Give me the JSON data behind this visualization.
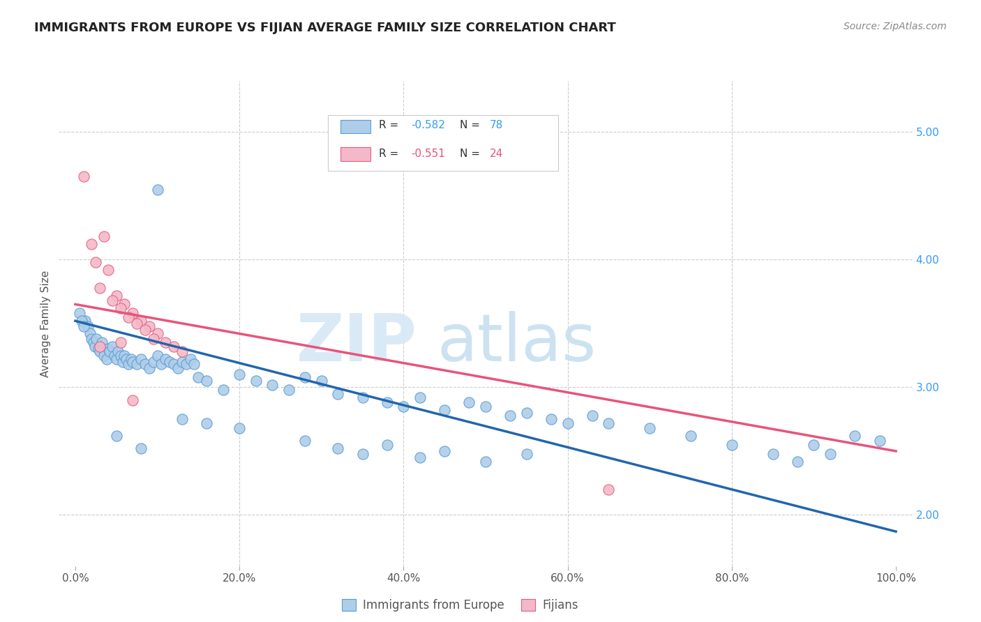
{
  "title": "IMMIGRANTS FROM EUROPE VS FIJIAN AVERAGE FAMILY SIZE CORRELATION CHART",
  "source": "Source: ZipAtlas.com",
  "ylabel": "Average Family Size",
  "right_yticks": [
    2.0,
    3.0,
    4.0,
    5.0
  ],
  "watermark_zip": "ZIP",
  "watermark_atlas": "atlas",
  "blue_color": "#aecde8",
  "blue_edge_color": "#5b9bd5",
  "pink_color": "#f4b8c8",
  "pink_edge_color": "#e06080",
  "blue_line_color": "#2166ac",
  "pink_line_color": "#e8547a",
  "blue_scatter": [
    [
      1.2,
      3.52
    ],
    [
      1.5,
      3.48
    ],
    [
      1.8,
      3.42
    ],
    [
      2.0,
      3.38
    ],
    [
      2.2,
      3.35
    ],
    [
      2.4,
      3.32
    ],
    [
      2.6,
      3.38
    ],
    [
      2.8,
      3.3
    ],
    [
      3.0,
      3.28
    ],
    [
      3.2,
      3.35
    ],
    [
      3.5,
      3.25
    ],
    [
      3.8,
      3.22
    ],
    [
      4.0,
      3.3
    ],
    [
      4.2,
      3.28
    ],
    [
      4.5,
      3.32
    ],
    [
      4.8,
      3.25
    ],
    [
      5.0,
      3.22
    ],
    [
      5.2,
      3.28
    ],
    [
      5.5,
      3.25
    ],
    [
      5.8,
      3.2
    ],
    [
      6.0,
      3.25
    ],
    [
      6.2,
      3.22
    ],
    [
      6.5,
      3.18
    ],
    [
      6.8,
      3.22
    ],
    [
      7.0,
      3.2
    ],
    [
      7.5,
      3.18
    ],
    [
      8.0,
      3.22
    ],
    [
      8.5,
      3.18
    ],
    [
      9.0,
      3.15
    ],
    [
      9.5,
      3.2
    ],
    [
      10.0,
      3.25
    ],
    [
      10.5,
      3.18
    ],
    [
      11.0,
      3.22
    ],
    [
      11.5,
      3.2
    ],
    [
      12.0,
      3.18
    ],
    [
      12.5,
      3.15
    ],
    [
      13.0,
      3.2
    ],
    [
      13.5,
      3.18
    ],
    [
      14.0,
      3.22
    ],
    [
      14.5,
      3.18
    ],
    [
      0.5,
      3.58
    ],
    [
      0.8,
      3.52
    ],
    [
      1.0,
      3.48
    ],
    [
      15.0,
      3.08
    ],
    [
      16.0,
      3.05
    ],
    [
      18.0,
      2.98
    ],
    [
      20.0,
      3.1
    ],
    [
      22.0,
      3.05
    ],
    [
      24.0,
      3.02
    ],
    [
      26.0,
      2.98
    ],
    [
      28.0,
      3.08
    ],
    [
      30.0,
      3.05
    ],
    [
      32.0,
      2.95
    ],
    [
      35.0,
      2.92
    ],
    [
      38.0,
      2.88
    ],
    [
      40.0,
      2.85
    ],
    [
      42.0,
      2.92
    ],
    [
      45.0,
      2.82
    ],
    [
      48.0,
      2.88
    ],
    [
      50.0,
      2.85
    ],
    [
      53.0,
      2.78
    ],
    [
      55.0,
      2.8
    ],
    [
      58.0,
      2.75
    ],
    [
      60.0,
      2.72
    ],
    [
      63.0,
      2.78
    ],
    [
      65.0,
      2.72
    ],
    [
      28.0,
      2.58
    ],
    [
      32.0,
      2.52
    ],
    [
      35.0,
      2.48
    ],
    [
      38.0,
      2.55
    ],
    [
      42.0,
      2.45
    ],
    [
      45.0,
      2.5
    ],
    [
      50.0,
      2.42
    ],
    [
      55.0,
      2.48
    ],
    [
      70.0,
      2.68
    ],
    [
      75.0,
      2.62
    ],
    [
      80.0,
      2.55
    ],
    [
      85.0,
      2.48
    ],
    [
      88.0,
      2.42
    ],
    [
      90.0,
      2.55
    ],
    [
      92.0,
      2.48
    ],
    [
      95.0,
      2.62
    ],
    [
      98.0,
      2.58
    ],
    [
      13.0,
      2.75
    ],
    [
      16.0,
      2.72
    ],
    [
      20.0,
      2.68
    ],
    [
      10.0,
      4.55
    ],
    [
      5.0,
      2.62
    ],
    [
      8.0,
      2.52
    ]
  ],
  "pink_scatter": [
    [
      1.0,
      4.65
    ],
    [
      2.0,
      4.12
    ],
    [
      3.5,
      4.18
    ],
    [
      2.5,
      3.98
    ],
    [
      4.0,
      3.92
    ],
    [
      3.0,
      3.78
    ],
    [
      5.0,
      3.72
    ],
    [
      4.5,
      3.68
    ],
    [
      6.0,
      3.65
    ],
    [
      5.5,
      3.62
    ],
    [
      7.0,
      3.58
    ],
    [
      6.5,
      3.55
    ],
    [
      8.0,
      3.52
    ],
    [
      7.5,
      3.5
    ],
    [
      9.0,
      3.48
    ],
    [
      8.5,
      3.45
    ],
    [
      10.0,
      3.42
    ],
    [
      9.5,
      3.38
    ],
    [
      11.0,
      3.35
    ],
    [
      12.0,
      3.32
    ],
    [
      13.0,
      3.28
    ],
    [
      3.0,
      3.32
    ],
    [
      5.5,
      3.35
    ],
    [
      7.0,
      2.9
    ],
    [
      65.0,
      2.2
    ]
  ],
  "blue_trend_x": [
    0,
    100
  ],
  "blue_trend_y": [
    3.52,
    1.87
  ],
  "pink_trend_x": [
    0,
    100
  ],
  "pink_trend_y": [
    3.65,
    2.5
  ],
  "xlim": [
    -2,
    102
  ],
  "ylim": [
    1.6,
    5.4
  ],
  "xticks": [
    0,
    20,
    40,
    60,
    80,
    100
  ],
  "xtick_labels": [
    "0.0%",
    "20.0%",
    "40.0%",
    "60.0%",
    "80.0%",
    "100.0%"
  ],
  "title_fontsize": 13,
  "source_fontsize": 10,
  "axis_fontsize": 11,
  "legend_fontsize": 12
}
